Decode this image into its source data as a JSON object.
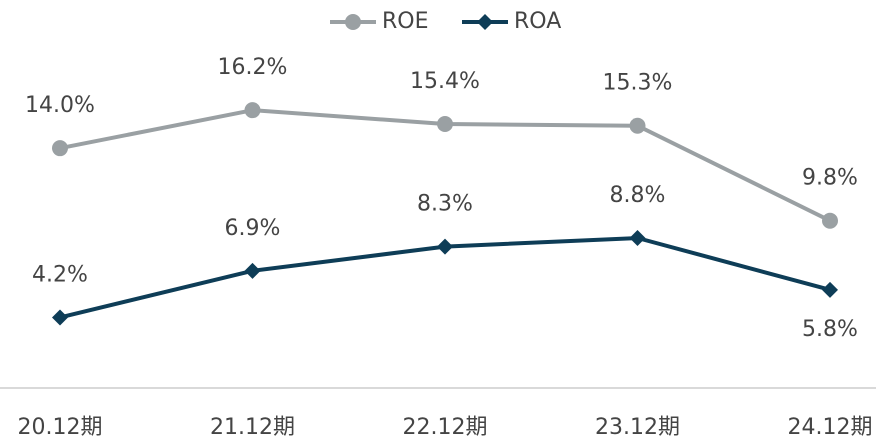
{
  "chart_data": {
    "type": "line",
    "categories": [
      "20.12期",
      "21.12期",
      "22.12期",
      "23.12期",
      "24.12期"
    ],
    "series": [
      {
        "name": "ROE",
        "color": "#9aa0a3",
        "marker": "circle",
        "values": [
          14.0,
          16.2,
          15.4,
          15.3,
          9.8
        ],
        "value_labels": [
          "14.0%",
          "16.2%",
          "15.4%",
          "15.3%",
          "9.8%"
        ]
      },
      {
        "name": "ROA",
        "color": "#0e3d57",
        "marker": "diamond",
        "values": [
          4.2,
          6.9,
          8.3,
          8.8,
          5.8
        ],
        "value_labels": [
          "4.2%",
          "6.9%",
          "8.3%",
          "8.8%",
          "5.8%"
        ]
      }
    ],
    "ylim": [
      0,
      22
    ],
    "legend": "top"
  }
}
